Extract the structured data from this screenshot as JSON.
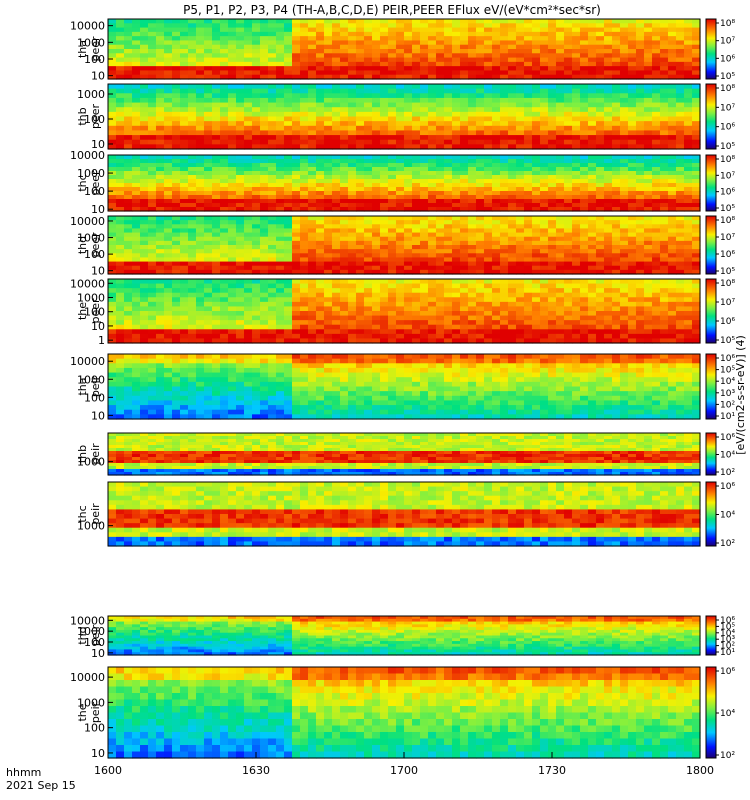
{
  "chart_data": {
    "type": "heatmap",
    "title": "P5, P1, P2, P3, P4 (TH-A,B,C,D,E) PEIR,PEER EFlux eV/(eV*cm²*sec*sr)",
    "xaxis": {
      "ticks": [
        "1600",
        "1630",
        "1700",
        "1730",
        "1800"
      ],
      "range": [
        "16:00",
        "18:00"
      ],
      "label_top": "hhmm",
      "label_bottom": "2021 Sep 15"
    },
    "colorbar_label": "[eV/(cm2-s-sr-eV)] (4)",
    "colorbar_ticks": [
      "10¹",
      "10²",
      "10³",
      "10⁴",
      "10⁵",
      "10⁶",
      "10⁷",
      "10⁸"
    ],
    "panels": [
      {
        "probe": "tha",
        "species": "peer",
        "yticks": [
          "10",
          "100",
          "1000",
          "10000"
        ],
        "log_range": [
          0.8,
          4.4
        ],
        "cb_ticks": [
          "10⁵",
          "10⁶",
          "10⁷",
          "10⁸"
        ]
      },
      {
        "probe": "thb",
        "species": "peer",
        "yticks": [
          "10",
          "100",
          "1000"
        ],
        "log_range": [
          0.8,
          3.4
        ],
        "cb_ticks": [
          "10⁵",
          "10⁶",
          "10⁷",
          "10⁸"
        ]
      },
      {
        "probe": "thc",
        "species": "peer",
        "yticks": [
          "10",
          "100",
          "1000",
          "10000"
        ],
        "log_range": [
          0.9,
          4.0
        ],
        "cb_ticks": [
          "10⁵",
          "10⁶",
          "10⁷",
          "10⁸"
        ]
      },
      {
        "probe": "thd",
        "species": "peer",
        "yticks": [
          "10",
          "100",
          "1000",
          "10000"
        ],
        "log_range": [
          0.8,
          4.3
        ],
        "cb_ticks": [
          "10⁵",
          "10⁶",
          "10⁷",
          "10⁸"
        ]
      },
      {
        "probe": "the",
        "species": "peer",
        "yticks": [
          "1",
          "10",
          "100",
          "1000",
          "10000"
        ],
        "log_range": [
          -0.2,
          4.3
        ],
        "cb_ticks": [
          "10⁵",
          "10⁶",
          "10⁷",
          "10⁸"
        ]
      },
      {
        "probe": "tha",
        "species": "peir",
        "yticks": [
          "10",
          "100",
          "1000",
          "10000"
        ],
        "log_range": [
          0.8,
          4.4
        ],
        "cb_ticks": [
          "10¹",
          "10²",
          "10³",
          "10⁴",
          "10⁵",
          "10⁶"
        ]
      },
      {
        "probe": "thb",
        "species": "peir",
        "yticks": [
          "1000"
        ],
        "log_range": [
          2.3,
          4.5
        ],
        "cb_ticks": [
          "10²",
          "10⁴",
          "10⁶"
        ]
      },
      {
        "probe": "thc",
        "species": "peir",
        "yticks": [
          "1000"
        ],
        "log_range": [
          2.3,
          4.5
        ],
        "cb_ticks": [
          "10²",
          "10⁴",
          "10⁶"
        ]
      },
      {
        "probe": "thd",
        "species": "peir",
        "yticks": [
          "10",
          "100",
          "1000",
          "10000"
        ],
        "log_range": [
          0.8,
          4.4
        ],
        "cb_ticks": [
          "10¹",
          "10²",
          "10³",
          "10⁴",
          "10⁵",
          "10⁶"
        ]
      },
      {
        "probe": "the",
        "species": "peir",
        "yticks": [
          "10",
          "100",
          "1000",
          "10000"
        ],
        "log_range": [
          0.8,
          4.4
        ],
        "cb_ticks": [
          "10²",
          "10⁴",
          "10⁶"
        ]
      }
    ]
  }
}
